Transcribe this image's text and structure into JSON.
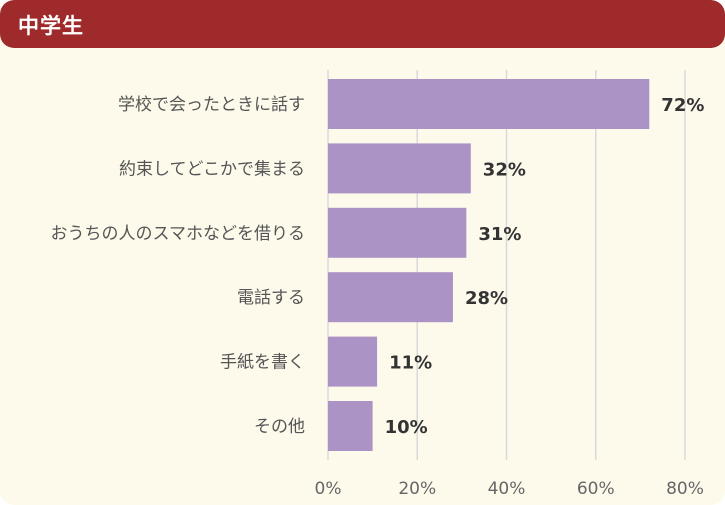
{
  "header": {
    "title": "中学生"
  },
  "chart_data": {
    "type": "bar",
    "orientation": "horizontal",
    "categories": [
      "学校で会ったときに話す",
      "約束してどこかで集まる",
      "おうちの人のスマホなどを借りる",
      "電話する",
      "手紙を書く",
      "その他"
    ],
    "values": [
      72,
      32,
      31,
      28,
      11,
      10
    ],
    "value_labels": [
      "72%",
      "32%",
      "31%",
      "28%",
      "11%",
      "10%"
    ],
    "xlim": [
      0,
      80
    ],
    "x_ticks": [
      0,
      20,
      40,
      60,
      80
    ],
    "x_tick_labels": [
      "0%",
      "20%",
      "40%",
      "60%",
      "80%"
    ],
    "bar_color": "#ab93c5",
    "grid": true
  }
}
